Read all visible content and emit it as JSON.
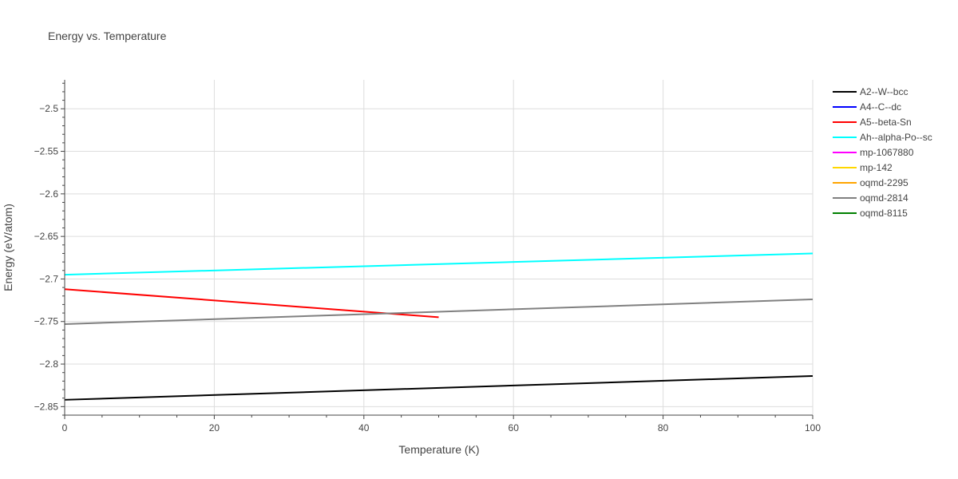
{
  "chart_data": {
    "type": "line",
    "title": "Energy vs. Temperature",
    "xlabel": "Temperature (K)",
    "ylabel": "Energy (eV/atom)",
    "xlim": [
      0,
      100
    ],
    "ylim": [
      -2.86,
      -2.466
    ],
    "xticks": [
      0,
      20,
      40,
      60,
      80,
      100
    ],
    "xtick_labels": [
      "0",
      "20",
      "40",
      "60",
      "80",
      "100"
    ],
    "yticks": [
      -2.85,
      -2.8,
      -2.75,
      -2.7,
      -2.65,
      -2.6,
      -2.55,
      -2.5
    ],
    "ytick_labels": [
      "−2.85",
      "−2.8",
      "−2.75",
      "−2.7",
      "−2.65",
      "−2.6",
      "−2.55",
      "−2.5"
    ],
    "grid": true,
    "legend_position": "right",
    "series": [
      {
        "name": "A2--W--bcc",
        "color": "#000000",
        "x": [
          0,
          100
        ],
        "y": [
          -2.842,
          -2.814
        ]
      },
      {
        "name": "A4--C--dc",
        "color": "#0000ff",
        "x": [],
        "y": []
      },
      {
        "name": "A5--beta-Sn",
        "color": "#ff0000",
        "x": [
          0,
          50
        ],
        "y": [
          -2.712,
          -2.745
        ]
      },
      {
        "name": "Ah--alpha-Po--sc",
        "color": "#00ffff",
        "x": [
          0,
          100
        ],
        "y": [
          -2.695,
          -2.67
        ]
      },
      {
        "name": "mp-1067880",
        "color": "#ff00ff",
        "x": [],
        "y": []
      },
      {
        "name": "mp-142",
        "color": "#ffd700",
        "x": [],
        "y": []
      },
      {
        "name": "oqmd-2295",
        "color": "#ffa500",
        "x": [],
        "y": []
      },
      {
        "name": "oqmd-2814",
        "color": "#808080",
        "x": [
          0,
          100
        ],
        "y": [
          -2.753,
          -2.724
        ]
      },
      {
        "name": "oqmd-8115",
        "color": "#008000",
        "x": [],
        "y": []
      }
    ]
  }
}
